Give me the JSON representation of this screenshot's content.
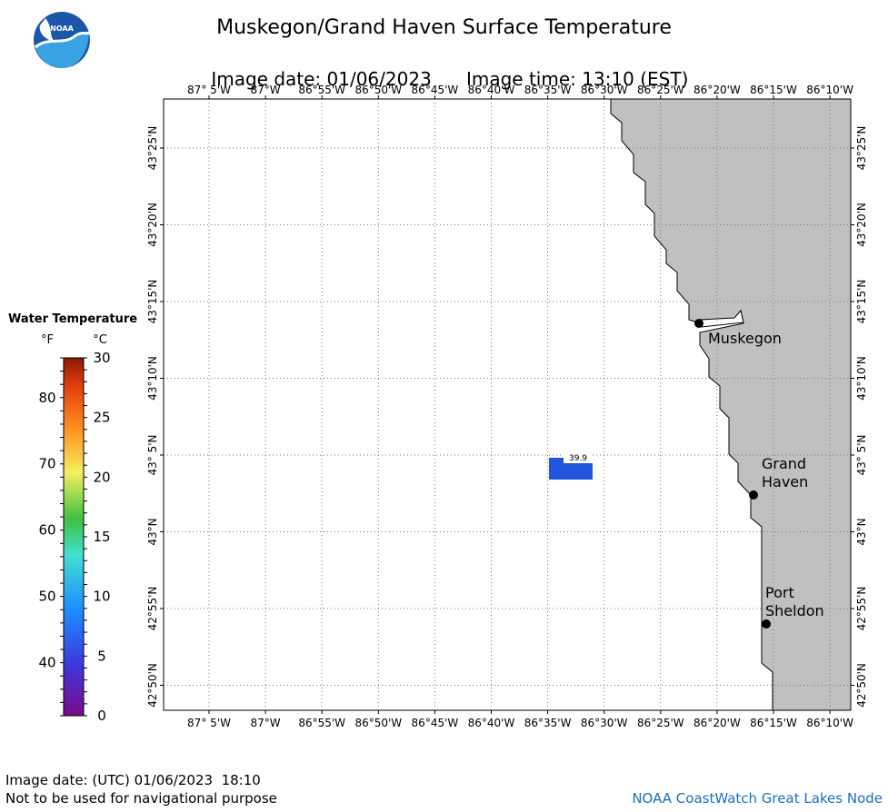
{
  "header": {
    "title": "Muskegon/Grand Haven Surface Temperature",
    "image_date_label": "Image date: 01/06/2023",
    "image_time_label": "Image time: 13:10 (EST)"
  },
  "logo": {
    "text": "NOAA",
    "icon": "noaa-logo"
  },
  "map": {
    "longitude_labels": [
      "87° 5'W",
      "87°W",
      "86°55'W",
      "86°50'W",
      "86°45'W",
      "86°40'W",
      "86°35'W",
      "86°30'W",
      "86°25'W",
      "86°20'W",
      "86°15'W",
      "86°10'W"
    ],
    "latitude_labels": [
      "43°25'N",
      "43°20'N",
      "43°15'N",
      "43°10'N",
      "43° 5'N",
      "43°N",
      "42°55'N",
      "42°50'N"
    ],
    "cities": [
      {
        "name": "Muskegon"
      },
      {
        "name": "Grand Haven"
      },
      {
        "name": "Port Sheldon"
      }
    ],
    "temperature_reading": {
      "value": "39.9",
      "unit": "°F",
      "color": "#2255dd"
    },
    "land_color": "#c0c0c0",
    "water_color": "#ffffff",
    "grid": "dotted"
  },
  "legend": {
    "title": "Water Temperature",
    "unit_f": "°F",
    "unit_c": "°C",
    "f_ticks": [
      "80",
      "70",
      "60",
      "50",
      "40"
    ],
    "c_ticks": [
      "30",
      "25",
      "20",
      "15",
      "10",
      "5",
      "0"
    ],
    "f_range": [
      32,
      86
    ],
    "c_range": [
      0,
      30
    ]
  },
  "footer": {
    "utc_date": "Image date: (UTC) 01/06/2023  18:10",
    "disclaimer": "Not to be used for navigational purpose",
    "credit": "NOAA CoastWatch Great Lakes Node"
  }
}
